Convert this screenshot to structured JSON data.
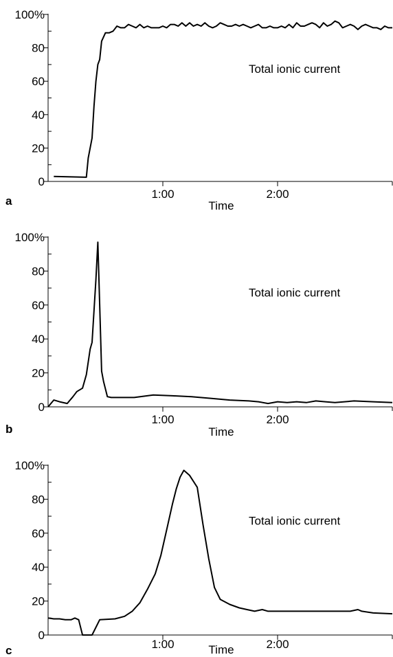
{
  "chart_data": [
    {
      "type": "line",
      "panel_label": "a",
      "annotation": "Total ionic current",
      "xlabel": "Time",
      "ylabel": "",
      "xlim": [
        0,
        180
      ],
      "ylim": [
        0,
        100
      ],
      "x_ticks": [
        {
          "value": 60,
          "label": "1:00"
        },
        {
          "value": 120,
          "label": "2:00"
        }
      ],
      "y_ticks": [
        {
          "value": 0,
          "label": "0"
        },
        {
          "value": 20,
          "label": "20"
        },
        {
          "value": 40,
          "label": "40"
        },
        {
          "value": 60,
          "label": "60"
        },
        {
          "value": 80,
          "label": "80"
        },
        {
          "value": 100,
          "label": "100%"
        }
      ],
      "grid": false,
      "series": [
        {
          "x": [
            3,
            20,
            21,
            23,
            24,
            25,
            26,
            27,
            28,
            30,
            32,
            34,
            36,
            38,
            40,
            42,
            44,
            46,
            48,
            50,
            52,
            54,
            56,
            58,
            60,
            62,
            64,
            66,
            68,
            70,
            72,
            74,
            76,
            78,
            80,
            82,
            84,
            86,
            88,
            90,
            92,
            94,
            96,
            98,
            100,
            102,
            104,
            106,
            108,
            110,
            112,
            114,
            116,
            118,
            120,
            122,
            124,
            126,
            128,
            130,
            132,
            134,
            136,
            138,
            140,
            142,
            144,
            146,
            148,
            150,
            152,
            154,
            156,
            158,
            160,
            162,
            164,
            166,
            168,
            170,
            172,
            174,
            176,
            178,
            180
          ],
          "y": [
            3,
            2.5,
            14,
            26,
            45,
            60,
            70,
            73,
            84,
            89,
            89,
            90,
            93,
            92,
            92,
            94,
            93,
            92,
            94,
            92,
            93,
            92,
            92,
            92,
            93,
            92,
            94,
            94,
            93,
            95,
            93,
            95,
            93,
            94,
            93,
            95,
            93,
            92,
            93,
            95,
            94,
            93,
            93,
            94,
            93,
            94,
            93,
            92,
            93,
            94,
            92,
            92,
            93,
            92,
            92,
            93,
            92,
            94,
            92,
            95,
            93,
            93,
            94,
            95,
            94,
            92,
            95,
            93,
            94,
            96,
            95,
            92,
            93,
            94,
            93,
            91,
            93,
            94,
            93,
            92,
            92,
            91,
            93,
            92,
            92
          ]
        }
      ]
    },
    {
      "type": "line",
      "panel_label": "b",
      "annotation": "Total ionic current",
      "xlabel": "Time",
      "ylabel": "",
      "xlim": [
        0,
        180
      ],
      "ylim": [
        0,
        100
      ],
      "x_ticks": [
        {
          "value": 60,
          "label": "1:00"
        },
        {
          "value": 120,
          "label": "2:00"
        }
      ],
      "y_ticks": [
        {
          "value": 0,
          "label": "0"
        },
        {
          "value": 20,
          "label": "20"
        },
        {
          "value": 40,
          "label": "40"
        },
        {
          "value": 60,
          "label": "60"
        },
        {
          "value": 80,
          "label": "80"
        },
        {
          "value": 100,
          "label": "100%"
        }
      ],
      "grid": false,
      "series": [
        {
          "x": [
            0,
            3,
            6,
            10,
            13,
            15,
            18,
            20,
            22,
            23,
            25,
            26,
            27,
            28,
            29,
            31,
            33,
            35,
            45,
            55,
            65,
            75,
            85,
            95,
            105,
            110,
            115,
            120,
            125,
            130,
            135,
            140,
            145,
            150,
            155,
            160,
            170,
            180
          ],
          "y": [
            0,
            4,
            3,
            2,
            6,
            9,
            11,
            19,
            34,
            38,
            75,
            97,
            60,
            21,
            15,
            6,
            5.5,
            5.5,
            5.5,
            7,
            6.5,
            6,
            5,
            4,
            3.5,
            3,
            2,
            3,
            2.5,
            3,
            2.5,
            3.5,
            3,
            2.5,
            3,
            3.5,
            3,
            2.5
          ]
        }
      ]
    },
    {
      "type": "line",
      "panel_label": "c",
      "annotation": "Total ionic current",
      "xlabel": "Time",
      "ylabel": "",
      "xlim": [
        0,
        180
      ],
      "ylim": [
        0,
        100
      ],
      "x_ticks": [
        {
          "value": 60,
          "label": "1:00"
        },
        {
          "value": 120,
          "label": "2:00"
        }
      ],
      "y_ticks": [
        {
          "value": 0,
          "label": "0"
        },
        {
          "value": 20,
          "label": "20"
        },
        {
          "value": 40,
          "label": "40"
        },
        {
          "value": 60,
          "label": "60"
        },
        {
          "value": 80,
          "label": "80"
        },
        {
          "value": 100,
          "label": "100%"
        }
      ],
      "grid": false,
      "series": [
        {
          "x": [
            0,
            3,
            6,
            9,
            12,
            14,
            16,
            18,
            21,
            23,
            27,
            35,
            40,
            44,
            48,
            52,
            56,
            59,
            62,
            65,
            67,
            69,
            71,
            74,
            78,
            81,
            84,
            87,
            90,
            95,
            100,
            104,
            108,
            112,
            115,
            120,
            130,
            140,
            150,
            156,
            158,
            162,
            164,
            170,
            180
          ],
          "y": [
            10,
            9.5,
            9.5,
            9,
            9,
            10,
            9,
            0,
            0,
            0,
            9,
            9.5,
            11,
            14,
            19,
            27,
            36,
            47,
            62,
            77,
            86,
            93,
            97,
            94,
            87,
            65,
            45,
            28,
            21,
            18,
            16,
            15,
            14,
            15,
            14,
            14,
            14,
            14,
            14,
            14,
            14,
            15,
            14,
            13,
            12.5
          ]
        }
      ]
    }
  ]
}
